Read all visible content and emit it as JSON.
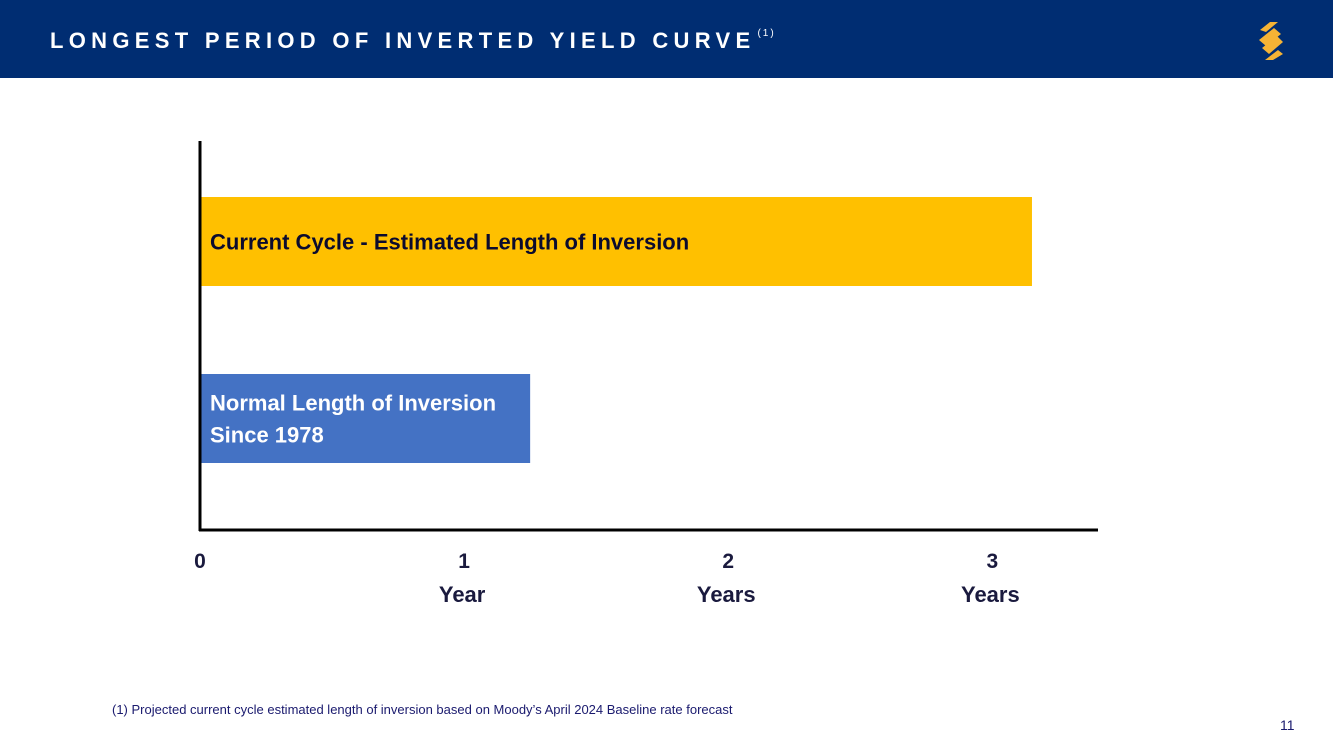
{
  "header": {
    "title": "LONGEST PERIOD OF INVERTED YIELD CURVE",
    "title_superscript": "(1)",
    "background_color": "#002d72",
    "logo_icon": "s-stripes-logo-icon",
    "logo_color": "#f5b335"
  },
  "chart_data": {
    "type": "bar",
    "orientation": "horizontal",
    "categories": [
      "Current Cycle - Estimated Length of Inversion",
      "Normal Length of Inversion Since 1978"
    ],
    "category_label_lines": [
      [
        "Current Cycle - Estimated Length of Inversion"
      ],
      [
        "Normal Length of Inversion",
        "Since 1978"
      ]
    ],
    "values": [
      3.15,
      1.25
    ],
    "colors": [
      "#ffc000",
      "#4472c4"
    ],
    "label_colors": [
      "#0b0b2e",
      "#ffffff"
    ],
    "xlim": [
      0,
      3.4
    ],
    "x_ticks": [
      {
        "value": 0,
        "label": "0",
        "sublabel": ""
      },
      {
        "value": 1,
        "label": "1",
        "sublabel": "Year"
      },
      {
        "value": 2,
        "label": "2",
        "sublabel": "Years"
      },
      {
        "value": 3,
        "label": "3",
        "sublabel": "Years"
      }
    ],
    "title": "",
    "xlabel": "",
    "ylabel": "",
    "grid": false,
    "legend": "none"
  },
  "footnote": "(1) Projected current cycle estimated length of inversion based on Moody’s April 2024 Baseline rate forecast",
  "page_number": "11"
}
